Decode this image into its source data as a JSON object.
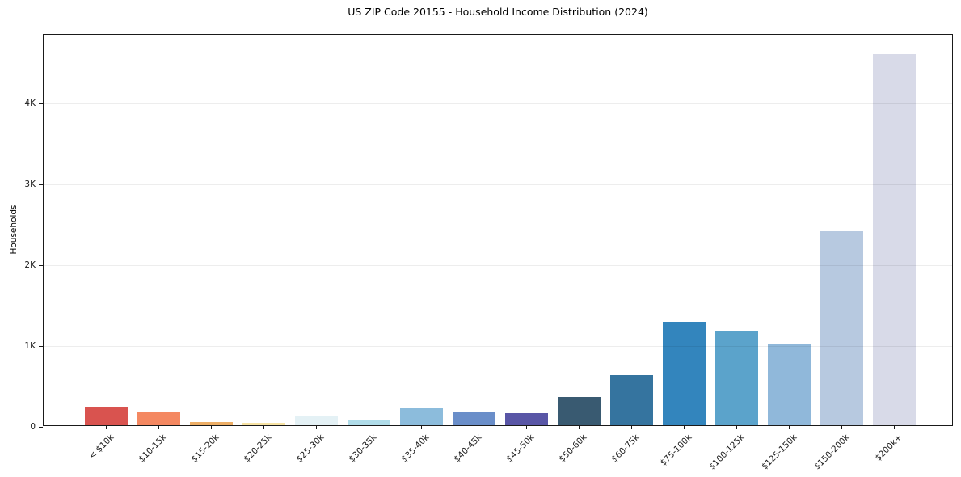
{
  "chart_data": {
    "type": "bar",
    "title": "US ZIP Code 20155 - Household Income Distribution (2024)",
    "xlabel": "",
    "ylabel": "Households",
    "categories": [
      "< $10k",
      "$10-15k",
      "$15-20k",
      "$20-25k",
      "$25-30k",
      "$30-35k",
      "$35-40k",
      "$40-45k",
      "$45-50k",
      "$50-60k",
      "$60-75k",
      "$75-100k",
      "$100-125k",
      "$125-150k",
      "$150-200k",
      "$200k+"
    ],
    "values": [
      230,
      160,
      45,
      35,
      115,
      60,
      215,
      170,
      155,
      350,
      620,
      1280,
      1170,
      1015,
      2400,
      4590
    ],
    "bar_colors": [
      "#d9534f",
      "#f48861",
      "#edae66",
      "#f7e3a4",
      "#e4f1f5",
      "#b0dce9",
      "#8cbcdc",
      "#6a8ec9",
      "#5956a6",
      "#395a71",
      "#35749f",
      "#3385bd",
      "#5ba3cb",
      "#90b8da",
      "#b7c9e0",
      "#d8dae8"
    ],
    "ylim": [
      0,
      4850
    ],
    "yticks": {
      "values": [
        0,
        1000,
        2000,
        3000,
        4000
      ],
      "labels": [
        "0",
        "1K",
        "2K",
        "3K",
        "4K"
      ]
    },
    "x_tick_rotation": 45,
    "grid": "horizontal",
    "legend": "none",
    "axis_color": "#1a1a1a",
    "grid_color": "rgba(0,0,0,0.07)",
    "background_color": "#ffffff"
  }
}
